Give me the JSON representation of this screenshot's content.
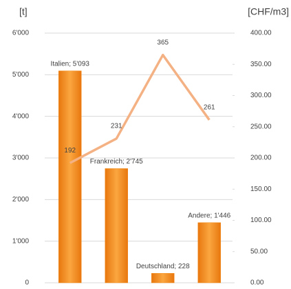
{
  "chart_data": {
    "type": "bar-line",
    "ylabel": "[t]",
    "y2label": "[CHF/m3]",
    "categories": [
      null,
      null,
      null,
      null
    ],
    "series": [
      {
        "type": "bar",
        "color": "#f28e1c",
        "values": [
          5093,
          2745,
          228,
          1446
        ],
        "value_labels": [
          "Italien; 5'093",
          "Frankreich; 2'745",
          "Deutschland; 228",
          "Andere; 1'446"
        ]
      },
      {
        "type": "line",
        "axis": "y2",
        "color": "#f4b183",
        "values": [
          192,
          231,
          365,
          261
        ]
      }
    ],
    "ylim": [
      0,
      6000
    ],
    "yticks": [
      0,
      {
        "value": 1000,
        "label": "1'000"
      },
      {
        "value": 2000,
        "label": "2'000"
      },
      {
        "value": 3000,
        "label": "3'000"
      },
      {
        "value": 4000,
        "label": "4'000"
      },
      {
        "value": 5000,
        "label": "5'000"
      },
      {
        "value": 6000,
        "label": "6'000"
      }
    ],
    "y2lim": [
      0,
      400
    ],
    "y2ticks": [
      {
        "value": 0,
        "label": "0.00"
      },
      {
        "value": 50,
        "label": "50.00"
      },
      {
        "value": 100,
        "label": "100.00"
      },
      {
        "value": 150,
        "label": "150.00"
      },
      {
        "value": 200,
        "label": "200.00"
      },
      {
        "value": 250,
        "label": "250.00"
      },
      {
        "value": 300,
        "label": "300.00"
      },
      {
        "value": 350,
        "label": "350.00"
      },
      {
        "value": 400,
        "label": "400.00"
      }
    ],
    "grid": true
  }
}
